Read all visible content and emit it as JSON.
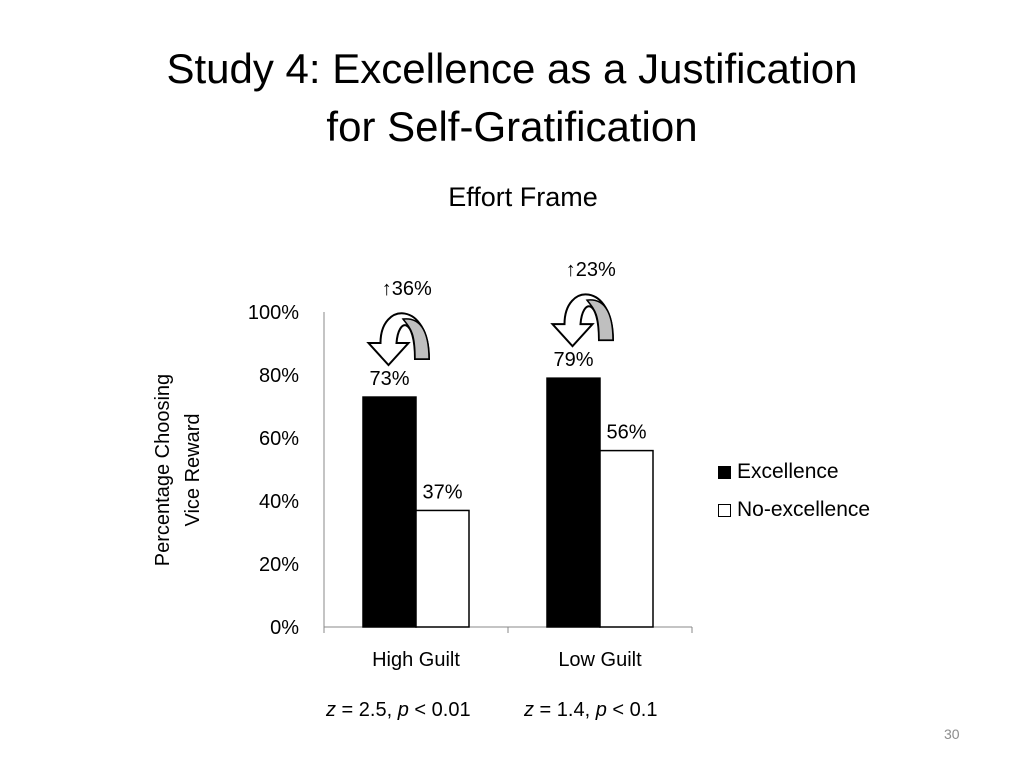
{
  "slide": {
    "title_line1": "Study 4: Excellence as a Justification",
    "title_line2": "for Self-Gratification",
    "page_number": "30"
  },
  "chart_data": {
    "type": "bar",
    "title": "Effort Frame",
    "ylabel_line1": "Percentage Choosing",
    "ylabel_line2": "Vice Reward",
    "categories": [
      "High Guilt",
      "Low Guilt"
    ],
    "series": [
      {
        "name": "Excellence",
        "values": [
          73,
          79
        ],
        "labels": [
          "73%",
          "79%"
        ],
        "color": "#000000"
      },
      {
        "name": "No-excellence",
        "values": [
          37,
          56
        ],
        "labels": [
          "37%",
          "56%"
        ],
        "color": "#ffffff"
      }
    ],
    "ylim": [
      0,
      100
    ],
    "yticks": [
      0,
      20,
      40,
      60,
      80,
      100
    ],
    "ytick_labels": [
      "0%",
      "20%",
      "40%",
      "60%",
      "80%",
      "100%"
    ],
    "grid": false,
    "legend": "right",
    "annotations": [
      {
        "category": "High Guilt",
        "text": "↑36%"
      },
      {
        "category": "Low Guilt",
        "text": "↑23%"
      }
    ],
    "stats": [
      {
        "category": "High Guilt",
        "z_value": " = 2.5, ",
        "p_value": " < 0.01"
      },
      {
        "category": "Low Guilt",
        "z_value": " = 1.4, ",
        "p_value": " < 0.1"
      }
    ],
    "stat_symbols": {
      "z": "z",
      "p": "p"
    }
  }
}
